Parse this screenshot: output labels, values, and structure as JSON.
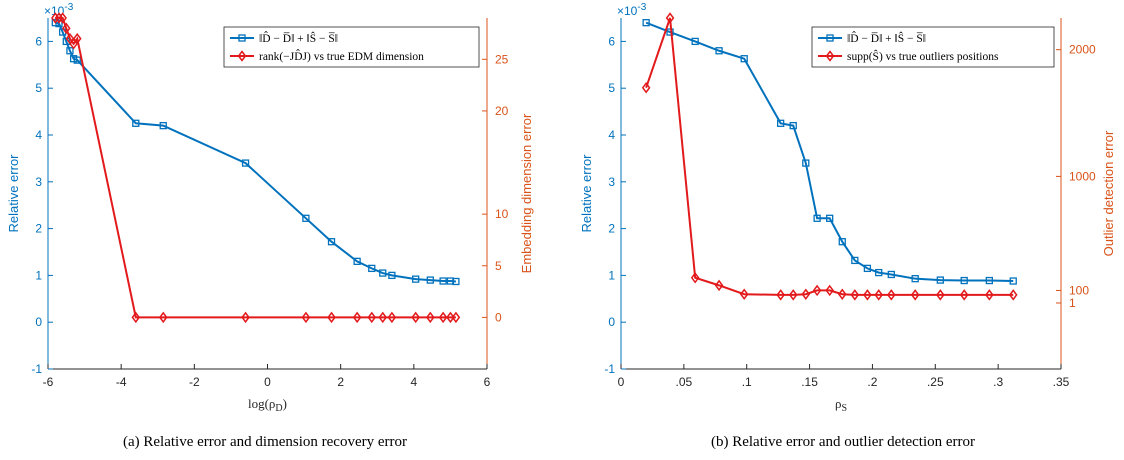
{
  "colors": {
    "blue": "#0072BD",
    "red": "#e31a1c",
    "orange": "#D95319",
    "axis": "#262626"
  },
  "chart_data": [
    {
      "type": "line",
      "caption": "(a) Relative error and dimension recovery error",
      "xlabel": "log(ρ",
      "xlabel_sub": "D",
      "xlim": [
        -6,
        6
      ],
      "xticks": [
        -6,
        -4,
        -2,
        0,
        2,
        4,
        6
      ],
      "ylabel_left": "Relative error",
      "ylim_left": [
        -1,
        6.5
      ],
      "yticks_left": [
        -1,
        0,
        1,
        2,
        3,
        4,
        5,
        6
      ],
      "left_exponent": "×10",
      "left_exponent_power": "-3",
      "ylabel_right": "Embedding dimension error",
      "ylim_right": [
        -5,
        29
      ],
      "yticks_right": [
        0,
        5,
        10,
        20,
        25
      ],
      "legend_position": "top-right",
      "series": [
        {
          "name": "‖D̂ − D̅‖ + ‖Ŝ − S̅‖",
          "axis": "left",
          "marker": "square",
          "x": [
            -5.8,
            -5.7,
            -5.6,
            -5.5,
            -5.4,
            -5.3,
            -5.2,
            -3.6,
            -2.85,
            -0.6,
            1.05,
            1.75,
            2.45,
            2.85,
            3.15,
            3.4,
            4.05,
            4.45,
            4.8,
            5.0,
            5.15
          ],
          "values": [
            6.4,
            6.38,
            6.2,
            6.0,
            5.8,
            5.63,
            5.6,
            4.25,
            4.2,
            3.4,
            2.22,
            1.72,
            1.3,
            1.15,
            1.05,
            1.0,
            0.92,
            0.9,
            0.88,
            0.88,
            0.87
          ]
        },
        {
          "name": "rank(−JD̂J) vs true EDM dimension",
          "axis": "right",
          "marker": "diamond",
          "x": [
            -5.8,
            -5.7,
            -5.6,
            -5.5,
            -5.4,
            -5.3,
            -5.2,
            -3.6,
            -2.85,
            -0.6,
            1.05,
            1.75,
            2.45,
            2.85,
            3.15,
            3.4,
            4.05,
            4.45,
            4.8,
            5.0,
            5.15
          ],
          "values": [
            29,
            29,
            29,
            28,
            27,
            26.5,
            27,
            0,
            0,
            0,
            0,
            0,
            0,
            0,
            0,
            0,
            0,
            0,
            0,
            0,
            0
          ]
        }
      ]
    },
    {
      "type": "line",
      "caption": "(b) Relative error and outlier detection error",
      "xlabel": "ρ",
      "xlabel_sub": "S",
      "xlim": [
        0,
        0.35
      ],
      "xticks": [
        0,
        0.05,
        0.1,
        0.15,
        0.2,
        0.25,
        0.3,
        0.35
      ],
      "ylabel_left": "Relative error",
      "ylim_left": [
        -1,
        6.5
      ],
      "yticks_left": [
        -1,
        0,
        1,
        2,
        3,
        4,
        5,
        6
      ],
      "left_exponent": "×10",
      "left_exponent_power": "-3",
      "ylabel_right": "Outlier detection error",
      "ylim_right": [
        -520,
        2250
      ],
      "yticks_right": [
        1,
        100,
        1000,
        2000
      ],
      "legend_position": "top-right",
      "series": [
        {
          "name": "‖D̂ − D̅‖ + ‖Ŝ − S̅‖",
          "axis": "left",
          "marker": "square",
          "x": [
            0.02,
            0.039,
            0.059,
            0.078,
            0.098,
            0.127,
            0.137,
            0.147,
            0.156,
            0.166,
            0.176,
            0.186,
            0.196,
            0.205,
            0.215,
            0.234,
            0.254,
            0.273,
            0.293,
            0.312
          ],
          "values": [
            6.4,
            6.2,
            6.0,
            5.8,
            5.63,
            4.25,
            4.2,
            3.4,
            2.22,
            2.22,
            1.72,
            1.32,
            1.15,
            1.06,
            1.02,
            0.93,
            0.9,
            0.89,
            0.89,
            0.88
          ]
        },
        {
          "name": "supp(Ŝ) vs true outliers positions",
          "axis": "right",
          "marker": "diamond",
          "x": [
            0.02,
            0.039,
            0.059,
            0.078,
            0.098,
            0.127,
            0.137,
            0.147,
            0.156,
            0.166,
            0.176,
            0.186,
            0.196,
            0.205,
            0.215,
            0.234,
            0.254,
            0.273,
            0.293,
            0.312
          ],
          "values": [
            1700,
            2250,
            200,
            140,
            70,
            65,
            65,
            70,
            100,
            100,
            70,
            65,
            65,
            65,
            65,
            65,
            65,
            65,
            65,
            65
          ]
        }
      ]
    }
  ]
}
